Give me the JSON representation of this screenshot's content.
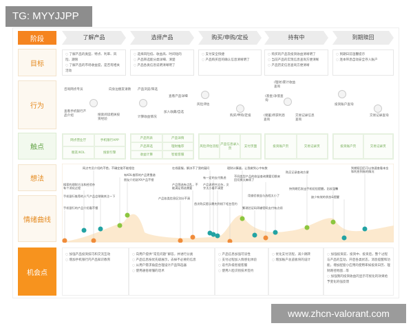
{
  "tag": "TG: MYYJJPP",
  "watermark": "www.zhcn-valorant.com",
  "colors": {
    "accent": "#f5841f",
    "touch": "#6aa84f",
    "positive": "#8cc63f",
    "neutral": "#23a3a3",
    "negative": "#f08c3a"
  },
  "labels": {
    "stage": "阶段",
    "goal": "目标",
    "behavior": "行为",
    "touch": "触点",
    "thought": "想法",
    "emotion": "情绪曲线",
    "opportunity": "机会点"
  },
  "stages": [
    "了解产品",
    "选择产品",
    "购买/申购/定投",
    "持有中",
    "到期赎回"
  ],
  "goals": [
    [
      "了解产品的类型、特点、利率、风险、期限",
      "了解产品的市场收益度，是否有相关活动"
    ],
    [
      "选择风险低、收益高、时间短的",
      "产品筛选能分类详细、清楚",
      "产品各类信息说明清晰明了"
    ],
    [
      "支付安全快捷",
      "产品购买后的确认信息清晰明了"
    ],
    [
      "购买的产品及投资收益清晰明了",
      "当前产品的实现信息查询方便清晰",
      "产品历史信息查询方便清晰"
    ],
    [
      "到期日前温馨提示",
      "连本带息自动安全存入账户"
    ]
  ],
  "behaviors": [
    "咨询网点专员",
    "向身边朋友请教",
    "查看手机银行产品介绍",
    "搜索阅读相关投资经验",
    "产品浏览/筛选",
    "查看产品详细",
    "计算收益情况",
    "加入收藏/自选",
    "风险评估",
    "购买/申购/定投",
    "(理财)累计收益查询",
    "(基金)净值查询",
    "(储蓄)所获利息查询",
    "交易记录信息查询",
    "投资账户查询",
    "交易记录查询"
  ],
  "touchpoints": [
    [
      "网点营业厅",
      "手机银行APP",
      "朋友/KOL",
      "搜索引擎"
    ],
    [
      "产品列表",
      "产品详情",
      "产品筛选",
      "理财推荐",
      "收益计算",
      "智能客服"
    ],
    [
      "风险评估流程",
      "产品信息录入页",
      "支付页面"
    ],
    [
      "投资账户页",
      "交易记录页"
    ],
    [
      "投资账户页",
      "交易记录页"
    ]
  ],
  "emotions": [
    {
      "text": "手机银行的产品介绍看不懂",
      "mood": "negative"
    },
    {
      "text": "搜索的理财方法和经验杂有个消化过程",
      "mood": "neutral"
    },
    {
      "text": "网点专员介绍的不错，不确定能不能相信",
      "mood": "negative"
    },
    {
      "text": "手机银行推荐的人气产品会稍微关注一下",
      "mood": "neutral"
    },
    {
      "text": "有KOL推荐的产品更靠谱",
      "mood": "positive"
    },
    {
      "text": "朋友介绍说XX产品不错",
      "mood": "positive"
    },
    {
      "text": "产品各类信息区别分不清",
      "mood": "negative"
    },
    {
      "text": "产品筛选有点乱，不能满足筛选需要",
      "mood": "negative"
    },
    {
      "text": "在线客服，解决不了我的疑问",
      "mood": "neutral"
    },
    {
      "text": "有一定的支付焦虑",
      "mood": "neutral"
    },
    {
      "text": "产品说明书太杂，文字太小看不清楚",
      "mood": "neutral"
    },
    {
      "text": "首次购买提示需先到线下柜台签约",
      "mood": "negative"
    },
    {
      "text": "理财计算器，让我做到心中有数",
      "mood": "positive"
    },
    {
      "text": "繁琐验证码再输密码支付有点烦",
      "mood": "neutral"
    },
    {
      "text": "不同类型产品的收益查询需要切换来回切换太麻烦了",
      "mood": "negative"
    },
    {
      "text": "用查验收益与选程太小了",
      "mood": "neutral"
    },
    {
      "text": "购买记录查询方便",
      "mood": "positive"
    },
    {
      "text": "快到期后发出手机短信提醒，比较温馨",
      "mood": "positive"
    },
    {
      "text": "缺少有效的状态&提醒",
      "mood": "neutral"
    },
    {
      "text": "到期赎回后可以快速查看本金和利息到账的情况",
      "mood": "neutral"
    }
  ],
  "opportunities": [
    [
      "加强产品投资技巧和交流互动",
      "增加手机银行内产品知识教育"
    ],
    [
      "向用户提供“常见问题”解答，并进行分类",
      "产品信息按优先级展示，去掉不必要的信息",
      "从用户需求角度合理设计产品筛选器",
      "使用通俗易懂的话术"
    ],
    [
      "产品信息加强可读性",
      "支付过程加入情感化体验",
      "迭代升级智能客服",
      "使用人脸识别技术签约"
    ],
    [
      "优化支付流程，减少跳转",
      "增加账户总览板块的设计"
    ],
    [
      "加强投资前、投资中、投资后，整个过程与产品的互动，开启各类状态，消息提醒和功能，增加配套小应用的使用率如投资日历、理财路径地图...等",
      "加强我的投资收益的显示可视化的效果给予变化的强反馈"
    ]
  ]
}
